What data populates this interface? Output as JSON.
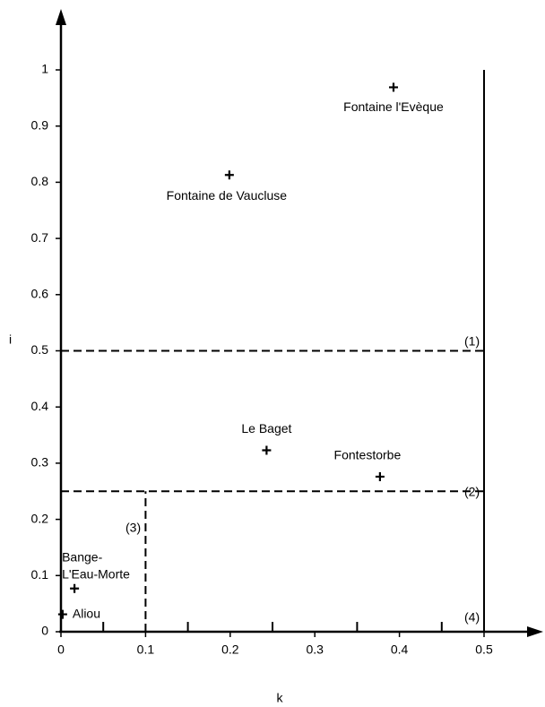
{
  "chart_data": {
    "type": "scatter",
    "x_label": "k",
    "y_label": "i",
    "x": [
      0.393,
      0.199,
      0.243,
      0.377,
      0.016,
      0.002
    ],
    "values": [
      0.969,
      0.813,
      0.323,
      0.276,
      0.077,
      0.031
    ],
    "labels": [
      [
        "Fontaine l'Evèque"
      ],
      [
        "Fontaine de Vaucluse"
      ],
      [
        "Le Baget"
      ],
      [
        "Fontestorbe"
      ],
      [
        "Bange-",
        "L'Eau-Morte"
      ],
      [
        "Aliou"
      ]
    ],
    "color": "#000000",
    "xlim": [
      0,
      0.5
    ],
    "ylim": [
      0,
      1
    ],
    "xticks": [
      0,
      0.1,
      0.2,
      0.3,
      0.4,
      0.5
    ],
    "xminorticks": [
      0.05,
      0.15,
      0.25,
      0.35,
      0.45
    ],
    "yticks": [
      0,
      0.1,
      0.2,
      0.3,
      0.4,
      0.5,
      0.6,
      0.7,
      0.8,
      0.9,
      1
    ],
    "reference_lines": [
      {
        "x": [
          0,
          0.5
        ],
        "y": [
          0.5,
          0.5
        ],
        "style": "dashed"
      },
      {
        "x": [
          0,
          0.5
        ],
        "y": [
          0.25,
          0.25
        ],
        "style": "dashed"
      },
      {
        "x": [
          0.1,
          0.1
        ],
        "y": [
          0,
          0.25
        ],
        "style": "dashed"
      },
      {
        "x": [
          0.5,
          0.5
        ],
        "y": [
          0,
          1
        ],
        "style": "solid"
      }
    ],
    "annotations": [
      "(1)",
      "(2)",
      "(3)",
      "(4)"
    ]
  }
}
